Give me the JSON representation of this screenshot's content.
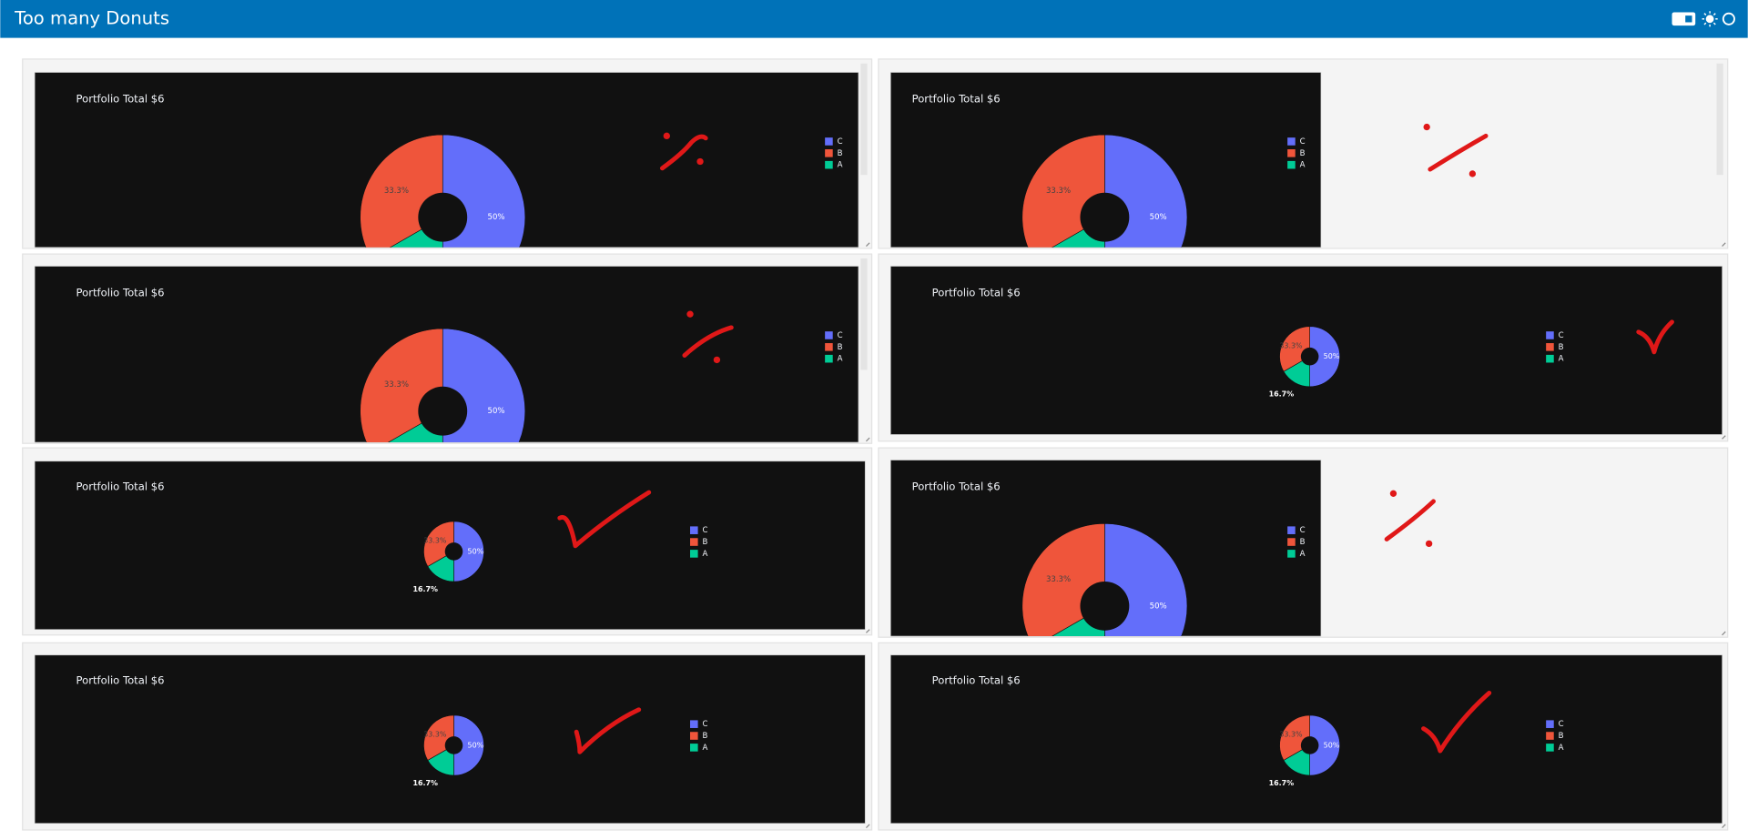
{
  "header": {
    "title": "Too many Donuts"
  },
  "panels": [
    {
      "title": "Portfolio Total $6",
      "type": "pie",
      "categories": [
        "C",
        "B",
        "A"
      ],
      "values": [
        50,
        33.3,
        16.7
      ],
      "value_labels": [
        "50%",
        "33.3%",
        null
      ],
      "colors": [
        "#636efa",
        "#ef553b",
        "#00cc96"
      ]
    },
    {
      "title": "Portfolio Total $6",
      "type": "pie",
      "categories": [
        "C",
        "B",
        "A"
      ],
      "values": [
        50,
        33.3,
        16.7
      ],
      "value_labels": [
        "50%",
        "33.3%",
        null
      ],
      "colors": [
        "#636efa",
        "#ef553b",
        "#00cc96"
      ]
    },
    {
      "title": "Portfolio Total $6",
      "type": "pie",
      "categories": [
        "C",
        "B",
        "A"
      ],
      "values": [
        50,
        33.3,
        16.7
      ],
      "value_labels": [
        "50%",
        "33.3%",
        null
      ],
      "colors": [
        "#636efa",
        "#ef553b",
        "#00cc96"
      ]
    },
    {
      "title": "Portfolio Total $6",
      "type": "pie",
      "categories": [
        "C",
        "B",
        "A"
      ],
      "values": [
        50,
        33.3,
        16.7
      ],
      "value_labels": [
        "50%",
        "33.3%",
        "16.7%"
      ],
      "colors": [
        "#636efa",
        "#ef553b",
        "#00cc96"
      ]
    },
    {
      "title": "Portfolio Total $6",
      "type": "pie",
      "categories": [
        "C",
        "B",
        "A"
      ],
      "values": [
        50,
        33.3,
        16.7
      ],
      "value_labels": [
        "50%",
        "33.3%",
        "16.7%"
      ],
      "colors": [
        "#636efa",
        "#ef553b",
        "#00cc96"
      ]
    },
    {
      "title": "Portfolio Total $6",
      "type": "pie",
      "categories": [
        "C",
        "B",
        "A"
      ],
      "values": [
        50,
        33.3,
        16.7
      ],
      "value_labels": [
        "50%",
        "33.3%",
        null
      ],
      "colors": [
        "#636efa",
        "#ef553b",
        "#00cc96"
      ]
    },
    {
      "title": "Portfolio Total $6",
      "type": "pie",
      "categories": [
        "C",
        "B",
        "A"
      ],
      "values": [
        50,
        33.3,
        16.7
      ],
      "value_labels": [
        "50%",
        "33.3%",
        "16.7%"
      ],
      "colors": [
        "#636efa",
        "#ef553b",
        "#00cc96"
      ]
    },
    {
      "title": "Portfolio Total $6",
      "type": "pie",
      "categories": [
        "C",
        "B",
        "A"
      ],
      "values": [
        50,
        33.3,
        16.7
      ],
      "value_labels": [
        "50%",
        "33.3%",
        "16.7%"
      ],
      "colors": [
        "#636efa",
        "#ef553b",
        "#00cc96"
      ]
    }
  ]
}
